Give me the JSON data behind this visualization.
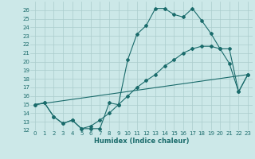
{
  "xlabel": "Humidex (Indice chaleur)",
  "xlim": [
    -0.5,
    23.5
  ],
  "ylim": [
    12,
    27
  ],
  "yticks": [
    12,
    13,
    14,
    15,
    16,
    17,
    18,
    19,
    20,
    21,
    22,
    23,
    24,
    25,
    26
  ],
  "xticks": [
    0,
    1,
    2,
    3,
    4,
    5,
    6,
    7,
    8,
    9,
    10,
    11,
    12,
    13,
    14,
    15,
    16,
    17,
    18,
    19,
    20,
    21,
    22,
    23
  ],
  "bg_color": "#cce8e8",
  "line_color": "#1a6b6b",
  "grid_color": "#aacccc",
  "line1": {
    "x": [
      0,
      1,
      2,
      3,
      4,
      5,
      6,
      7,
      8,
      9,
      10,
      11,
      12,
      13,
      14,
      15,
      16,
      17,
      18,
      19,
      20,
      21,
      22,
      23
    ],
    "y": [
      15.0,
      15.2,
      13.6,
      12.8,
      13.2,
      12.2,
      12.2,
      12.2,
      15.2,
      15.0,
      20.2,
      23.2,
      24.2,
      26.2,
      26.2,
      25.5,
      25.2,
      26.2,
      24.8,
      23.3,
      21.5,
      19.8,
      16.5,
      18.5
    ]
  },
  "line2": {
    "x": [
      0,
      1,
      2,
      3,
      4,
      5,
      6,
      7,
      8,
      9,
      10,
      11,
      12,
      13,
      14,
      15,
      16,
      17,
      18,
      19,
      20,
      21,
      22,
      23
    ],
    "y": [
      15.0,
      15.2,
      13.6,
      12.8,
      13.2,
      12.2,
      12.5,
      13.2,
      14.0,
      15.0,
      16.0,
      17.0,
      17.8,
      18.5,
      19.5,
      20.2,
      21.0,
      21.5,
      21.8,
      21.8,
      21.5,
      21.5,
      16.5,
      18.5
    ]
  },
  "line3": {
    "x": [
      0,
      23
    ],
    "y": [
      15.0,
      18.5
    ]
  }
}
